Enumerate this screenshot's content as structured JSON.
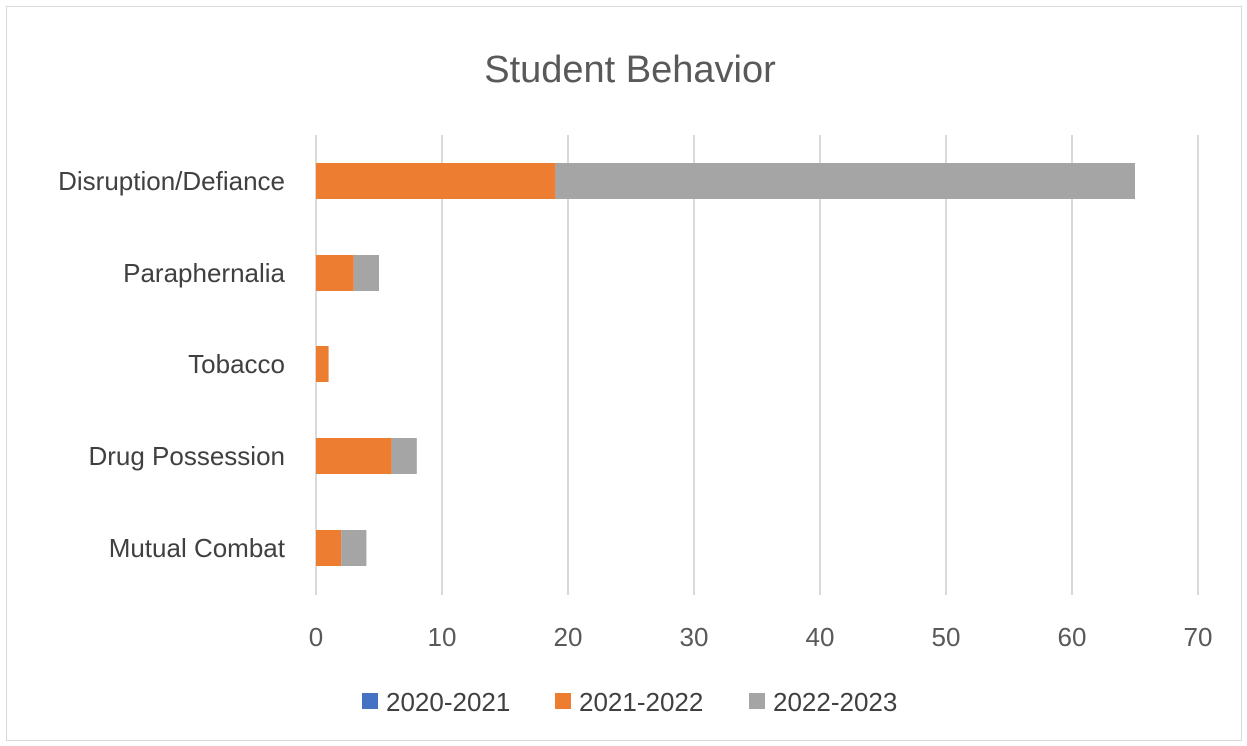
{
  "chart_data": {
    "type": "bar",
    "orientation": "horizontal",
    "stacked": true,
    "title": "Student Behavior",
    "categories": [
      "Disruption/Defiance",
      "Paraphernalia",
      "Tobacco",
      "Drug Possession",
      "Mutual Combat"
    ],
    "series": [
      {
        "name": "2020-2021",
        "color": "#4472c4",
        "values": [
          0,
          0,
          0,
          0,
          0
        ]
      },
      {
        "name": "2021-2022",
        "color": "#ed7d31",
        "values": [
          19,
          3,
          1,
          6,
          2
        ]
      },
      {
        "name": "2022-2023",
        "color": "#a5a5a5",
        "values": [
          46,
          2,
          0,
          2,
          2
        ]
      }
    ],
    "xlim": [
      0,
      70
    ],
    "xticks": [
      0,
      10,
      20,
      30,
      40,
      50,
      60,
      70
    ],
    "gridlines": true,
    "legend_position": "bottom"
  }
}
